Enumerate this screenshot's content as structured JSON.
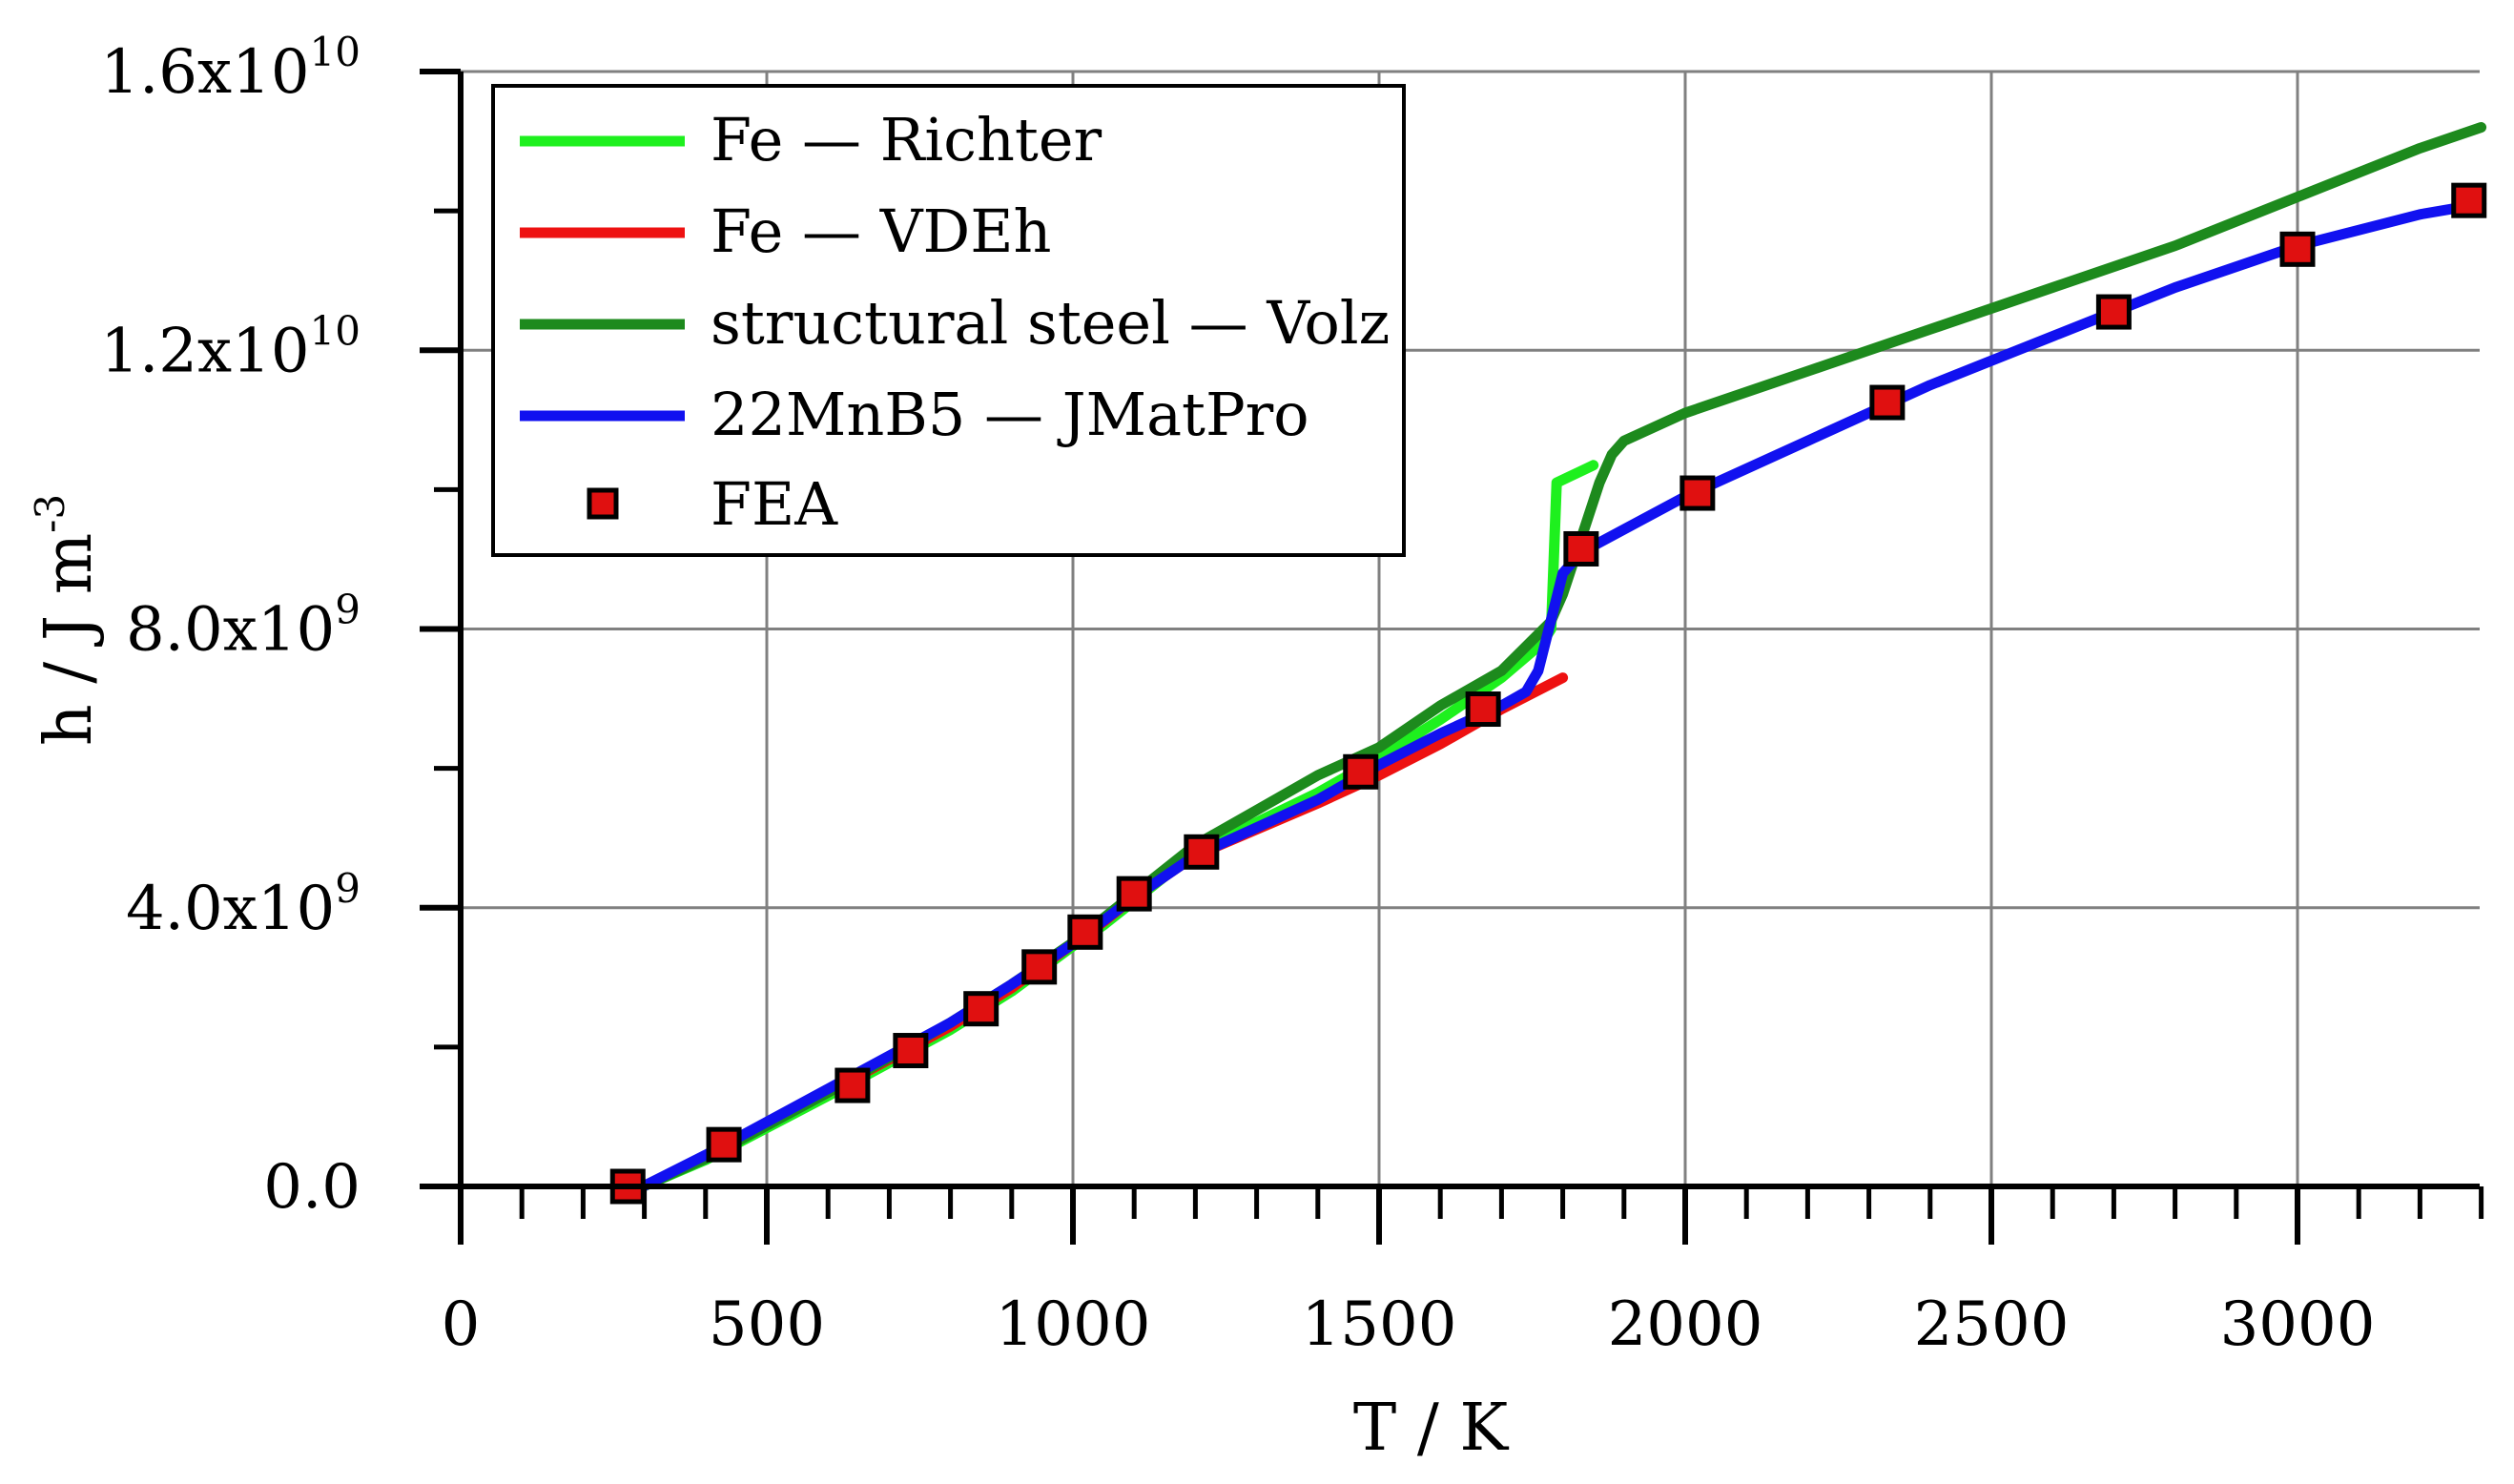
{
  "chart_data": {
    "type": "line",
    "xlabel": "T / K",
    "ylabel": {
      "main": "h / J m",
      "exp": "-3"
    },
    "xlim": [
      0,
      3300
    ],
    "ylim": [
      0,
      16000000000
    ],
    "grid": true,
    "legend_position": "top-left",
    "x_ticks": [
      {
        "value": 0,
        "label": "0"
      },
      {
        "value": 500,
        "label": "500"
      },
      {
        "value": 1000,
        "label": "1000"
      },
      {
        "value": 1500,
        "label": "1500"
      },
      {
        "value": 2000,
        "label": "2000"
      },
      {
        "value": 2500,
        "label": "2500"
      },
      {
        "value": 3000,
        "label": "3000"
      }
    ],
    "x_minor_step": 100,
    "y_ticks": [
      {
        "value": 0,
        "mantissa": "0.0",
        "exp": ""
      },
      {
        "value": 4000000000,
        "mantissa": "4.0x10",
        "exp": "9"
      },
      {
        "value": 8000000000,
        "mantissa": "8.0x10",
        "exp": "9"
      },
      {
        "value": 12000000000,
        "mantissa": "1.2x10",
        "exp": "10"
      },
      {
        "value": 16000000000,
        "mantissa": "1.6x10",
        "exp": "10"
      }
    ],
    "y_minor_step": 2000000000,
    "series": [
      {
        "name": "Fe — Richter",
        "color": "#1ef01e",
        "style": "line",
        "x": [
          298,
          400,
          600,
          800,
          900,
          1000,
          1050,
          1100,
          1200,
          1400,
          1500,
          1600,
          1700,
          1760,
          1770,
          1781,
          1790,
          1850
        ],
        "y": [
          0,
          380000000,
          1300000000,
          2250000000,
          2800000000,
          3450000000,
          3750000000,
          4100000000,
          4800000000,
          5650000000,
          6150000000,
          6700000000,
          7300000000,
          7750000000,
          7850000000,
          8000000000,
          10100000000,
          10350000000
        ]
      },
      {
        "name": "Fe — VDEh",
        "color": "#ee1111",
        "style": "line",
        "x": [
          298,
          400,
          600,
          800,
          900,
          1000,
          1050,
          1100,
          1200,
          1400,
          1500,
          1600,
          1700,
          1800
        ],
        "y": [
          0,
          430000000,
          1350000000,
          2300000000,
          2850000000,
          3480000000,
          3800000000,
          4150000000,
          4750000000,
          5500000000,
          5900000000,
          6350000000,
          6850000000,
          7300000000
        ]
      },
      {
        "name": "structural steel — Volz",
        "color": "#1d8a1d",
        "style": "line",
        "x": [
          298,
          400,
          600,
          800,
          900,
          1000,
          1100,
          1200,
          1300,
          1400,
          1500,
          1600,
          1700,
          1780,
          1800,
          1830,
          1860,
          1880,
          1900,
          1950,
          2000,
          2200,
          2400,
          2600,
          2800,
          3000,
          3200,
          3300
        ],
        "y": [
          0,
          400000000,
          1350000000,
          2350000000,
          2900000000,
          3500000000,
          4200000000,
          4900000000,
          5400000000,
          5900000000,
          6300000000,
          6900000000,
          7400000000,
          8100000000,
          8500000000,
          9300000000,
          10100000000,
          10500000000,
          10700000000,
          10900000000,
          11100000000,
          11700000000,
          12300000000,
          12900000000,
          13500000000,
          14200000000,
          14900000000,
          15200000000
        ]
      },
      {
        "name": "22MnB5 — JMatPro",
        "color": "#1111f0",
        "style": "line",
        "x": [
          298,
          400,
          600,
          800,
          900,
          1000,
          1100,
          1200,
          1400,
          1500,
          1600,
          1700,
          1740,
          1760,
          1780,
          1800,
          1830,
          2000,
          2200,
          2400,
          2600,
          2800,
          3000,
          3200,
          3300
        ],
        "y": [
          0,
          450000000,
          1400000000,
          2350000000,
          2900000000,
          3480000000,
          4150000000,
          4750000000,
          5550000000,
          6050000000,
          6500000000,
          6900000000,
          7100000000,
          7400000000,
          8100000000,
          8800000000,
          9100000000,
          9900000000,
          10700000000,
          11500000000,
          12200000000,
          12900000000,
          13500000000,
          13950000000,
          14100000000
        ]
      },
      {
        "name": "FEA",
        "color": "#e01010",
        "style": "markers",
        "x": [
          273,
          430,
          640,
          735,
          850,
          945,
          1020,
          1100,
          1210,
          1470,
          1670,
          1830,
          2020,
          2330,
          2700,
          3000,
          3280
        ],
        "y": [
          0,
          600000000,
          1450000000,
          1950000000,
          2550000000,
          3150000000,
          3650000000,
          4200000000,
          4800000000,
          5950000000,
          6850000000,
          9150000000,
          9950000000,
          11250000000,
          12550000000,
          13450000000,
          14150000000
        ]
      }
    ]
  }
}
